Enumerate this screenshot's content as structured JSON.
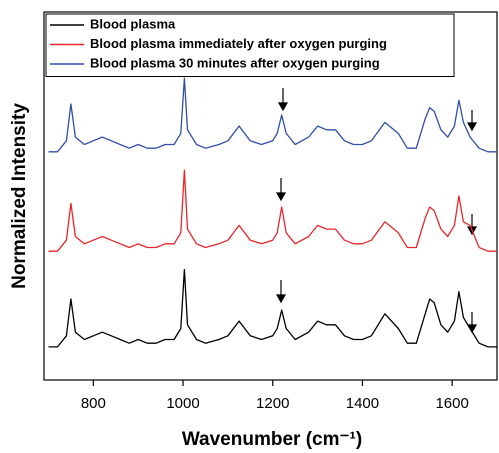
{
  "chart_data": {
    "type": "line",
    "xlabel": "Wavenumber (cm⁻¹)",
    "ylabel": "Normalized Intensity",
    "x": [
      700,
      720,
      740,
      750,
      760,
      780,
      800,
      820,
      840,
      860,
      880,
      900,
      920,
      940,
      960,
      980,
      995,
      1003,
      1010,
      1030,
      1050,
      1080,
      1100,
      1125,
      1150,
      1175,
      1200,
      1210,
      1220,
      1230,
      1250,
      1280,
      1300,
      1320,
      1340,
      1360,
      1380,
      1400,
      1420,
      1450,
      1480,
      1500,
      1520,
      1540,
      1550,
      1560,
      1575,
      1590,
      1605,
      1615,
      1625,
      1640,
      1660,
      1680,
      1700
    ],
    "series": [
      {
        "name": "Blood plasma",
        "color": "#000000",
        "values": [
          9,
          9,
          12,
          22,
          13,
          11,
          12,
          13,
          12,
          11,
          10,
          11,
          10,
          10,
          11,
          11,
          14,
          30,
          15,
          11,
          10,
          11,
          12,
          16,
          12,
          11,
          12,
          14,
          19,
          14,
          11,
          13,
          16,
          15,
          15,
          12,
          11,
          11,
          12,
          18,
          14,
          10,
          10,
          18,
          22,
          21,
          15,
          13,
          16,
          24,
          17,
          14,
          10,
          9,
          9
        ]
      },
      {
        "name": "Blood plasma immediately after oxygen purging",
        "color": "#e8262a",
        "values": [
          35,
          35,
          38,
          48,
          39,
          37,
          38,
          39,
          38,
          37,
          36,
          37,
          36,
          36,
          37,
          37,
          40,
          57,
          41,
          37,
          36,
          37,
          38,
          42,
          38,
          37,
          38,
          40,
          47,
          40,
          37,
          39,
          42,
          41,
          41,
          38,
          37,
          37,
          38,
          43,
          40,
          36,
          36,
          44,
          47,
          46,
          41,
          39,
          42,
          50,
          43,
          42,
          36,
          35,
          35
        ]
      },
      {
        "name": "Blood plasma 30 minutes after oxygen purging",
        "color": "#2f4fa8",
        "values": [
          62,
          62,
          65,
          75,
          66,
          64,
          65,
          66,
          65,
          64,
          63,
          64,
          63,
          63,
          64,
          64,
          67,
          82,
          68,
          64,
          63,
          64,
          65,
          69,
          65,
          64,
          65,
          67,
          72,
          67,
          64,
          66,
          69,
          68,
          68,
          65,
          64,
          64,
          65,
          70,
          67,
          63,
          63,
          71,
          74,
          73,
          68,
          66,
          69,
          76,
          70,
          66,
          63,
          62,
          62
        ]
      }
    ],
    "xlim": [
      690,
      1700
    ],
    "xticks": [
      800,
      1000,
      1200,
      1400,
      1600
    ],
    "ylim": [
      0,
      100
    ],
    "legend": "upper-left"
  }
}
